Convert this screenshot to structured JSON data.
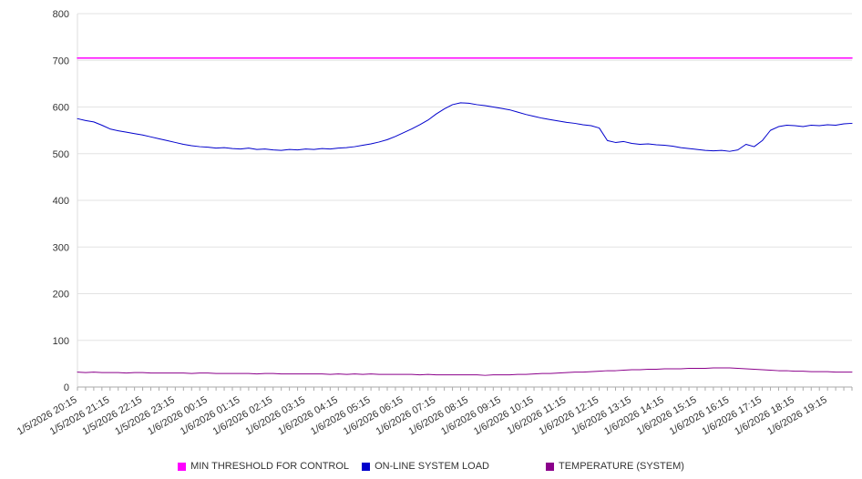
{
  "chart_data": {
    "type": "line",
    "title": "",
    "xlabel": "",
    "ylabel": "",
    "ylim": [
      0,
      800
    ],
    "y_ticks": [
      0,
      100,
      200,
      300,
      400,
      500,
      600,
      700,
      800
    ],
    "grid": "horizontal",
    "legend_position": "bottom",
    "points_per_hour": 4,
    "x_tick_labels": [
      "1/5/2026 20:15",
      "1/5/2026 21:15",
      "1/5/2026 22:15",
      "1/5/2026 23:15",
      "1/6/2026 00:15",
      "1/6/2026 01:15",
      "1/6/2026 02:15",
      "1/6/2026 03:15",
      "1/6/2026 04:15",
      "1/6/2026 05:15",
      "1/6/2026 06:15",
      "1/6/2026 07:15",
      "1/6/2026 08:15",
      "1/6/2026 09:15",
      "1/6/2026 10:15",
      "1/6/2026 11:15",
      "1/6/2026 12:15",
      "1/6/2026 13:15",
      "1/6/2026 14:15",
      "1/6/2026 15:15",
      "1/6/2026 16:15",
      "1/6/2026 17:15",
      "1/6/2026 18:15",
      "1/6/2026 19:15"
    ],
    "series": [
      {
        "name": "MIN THRESHOLD FOR CONTROL",
        "color": "#ff00ff",
        "style": "constant",
        "value": 705
      },
      {
        "name": "ON-LINE SYSTEM LOAD",
        "color": "#0000cc",
        "style": "line",
        "values": [
          575,
          571,
          568,
          561,
          553,
          549,
          546,
          543,
          540,
          536,
          532,
          528,
          524,
          520,
          517,
          515,
          514,
          512,
          513,
          511,
          510,
          512,
          509,
          510,
          508,
          507,
          509,
          508,
          510,
          509,
          511,
          510,
          512,
          513,
          515,
          518,
          521,
          525,
          530,
          537,
          545,
          553,
          562,
          572,
          585,
          596,
          605,
          609,
          608,
          605,
          603,
          600,
          597,
          594,
          589,
          584,
          580,
          576,
          573,
          570,
          567,
          565,
          562,
          560,
          555,
          528,
          524,
          526,
          522,
          520,
          521,
          519,
          518,
          516,
          513,
          511,
          509,
          507,
          506,
          507,
          505,
          508,
          520,
          515,
          528,
          550,
          558,
          561,
          560,
          558,
          561,
          560,
          562,
          561,
          564,
          565
        ]
      },
      {
        "name": "TEMPERATURE (SYSTEM)",
        "color": "#8b008b",
        "style": "line",
        "values": [
          32,
          31,
          32,
          31,
          31,
          31,
          30,
          31,
          31,
          30,
          30,
          30,
          30,
          30,
          29,
          30,
          30,
          29,
          29,
          29,
          29,
          29,
          28,
          29,
          29,
          28,
          28,
          28,
          28,
          28,
          28,
          27,
          28,
          27,
          28,
          27,
          28,
          27,
          27,
          27,
          27,
          27,
          26,
          27,
          26,
          26,
          26,
          26,
          26,
          26,
          25,
          26,
          26,
          26,
          27,
          27,
          28,
          29,
          29,
          30,
          31,
          32,
          32,
          33,
          34,
          35,
          35,
          36,
          37,
          37,
          38,
          38,
          39,
          39,
          39,
          40,
          40,
          40,
          41,
          41,
          41,
          40,
          39,
          38,
          37,
          36,
          35,
          35,
          34,
          34,
          33,
          33,
          33,
          32,
          32,
          32
        ]
      }
    ],
    "colors": {
      "gridline": "#e3e3e3",
      "axis": "#aaaaaa",
      "tick_label": "#333333",
      "background": "#ffffff"
    }
  }
}
